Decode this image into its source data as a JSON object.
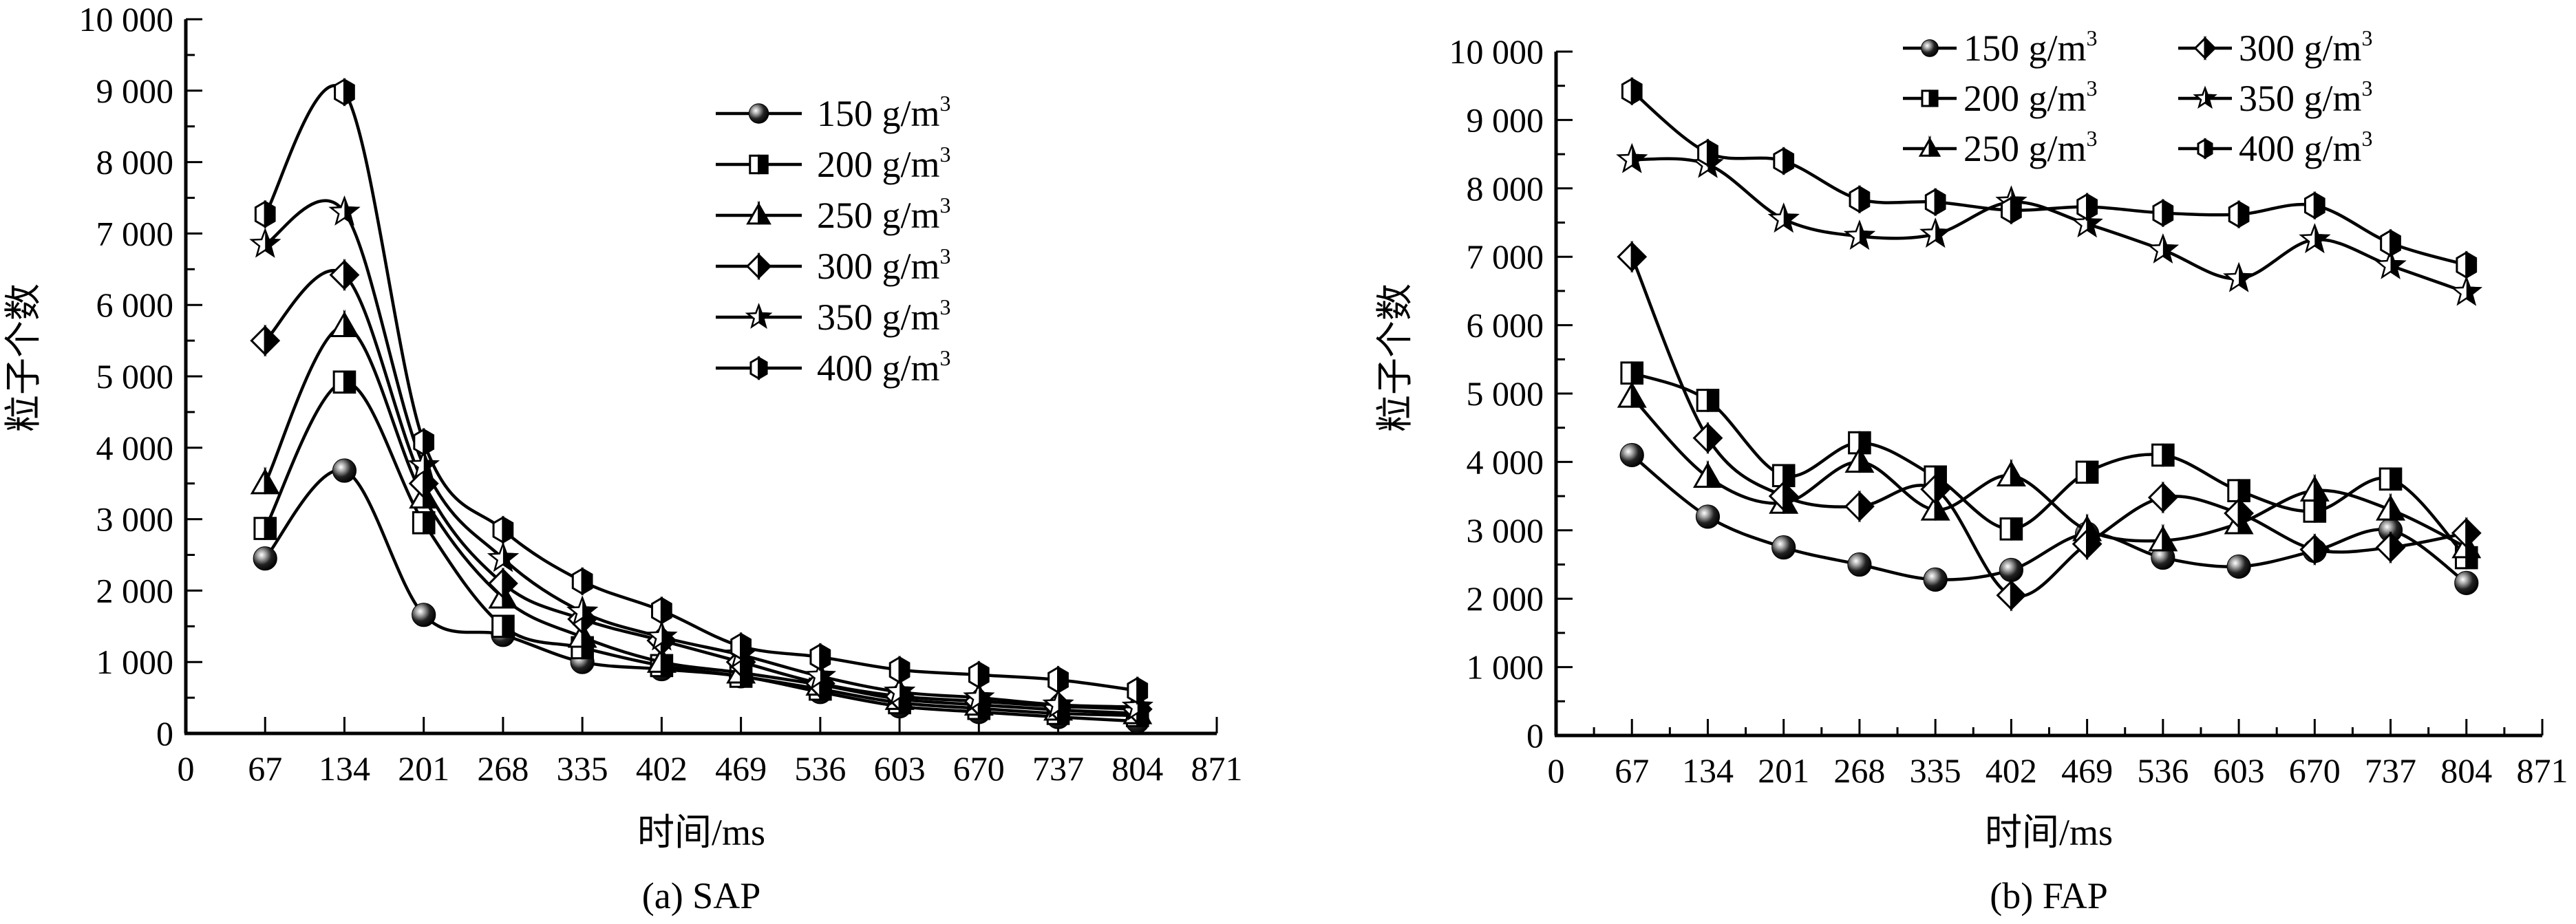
{
  "chart_data": [
    {
      "type": "line",
      "title": "(a) SAP",
      "xlabel": "时间/ms",
      "ylabel": "粒子个数",
      "xlim": [
        0,
        871
      ],
      "ylim": [
        0,
        10000
      ],
      "x_ticks": [
        "0",
        "67",
        "134",
        "201",
        "268",
        "335",
        "402",
        "469",
        "536",
        "603",
        "670",
        "737",
        "804",
        "871"
      ],
      "y_ticks": [
        "0",
        "1 000",
        "2 000",
        "3 000",
        "4 000",
        "5 000",
        "6 000",
        "7 000",
        "8 000",
        "9 000",
        "10 000"
      ],
      "grid": false,
      "legend_position": "top-right",
      "x": [
        67,
        134,
        201,
        268,
        335,
        402,
        469,
        536,
        603,
        670,
        737,
        804
      ],
      "series": [
        {
          "name": "150 g/m³",
          "label": "150 g/m",
          "sup": "3",
          "marker": "circle",
          "values": [
            2450,
            3680,
            1660,
            1380,
            1000,
            900,
            800,
            580,
            380,
            300,
            230,
            170
          ]
        },
        {
          "name": "200 g/m³",
          "label": "200 g/m",
          "sup": "3",
          "marker": "square",
          "values": [
            2870,
            4920,
            2950,
            1500,
            1200,
            950,
            800,
            620,
            430,
            350,
            280,
            250
          ]
        },
        {
          "name": "250 g/m³",
          "label": "250 g/m",
          "sup": "3",
          "marker": "triangle",
          "values": [
            3500,
            5700,
            3300,
            1900,
            1350,
            1000,
            850,
            680,
            480,
            400,
            330,
            280
          ]
        },
        {
          "name": "300 g/m³",
          "label": "300 g/m",
          "sup": "3",
          "marker": "diamond",
          "values": [
            5500,
            6420,
            3500,
            2100,
            1600,
            1300,
            1000,
            700,
            520,
            450,
            380,
            340
          ]
        },
        {
          "name": "350 g/m³",
          "label": "350 g/m",
          "sup": "3",
          "marker": "star",
          "values": [
            6850,
            7300,
            3750,
            2450,
            1700,
            1350,
            1100,
            800,
            580,
            500,
            400,
            370
          ]
        },
        {
          "name": "400 g/m³",
          "label": "400 g/m",
          "sup": "3",
          "marker": "hexagon",
          "values": [
            7270,
            8980,
            4080,
            2850,
            2130,
            1720,
            1220,
            1070,
            890,
            820,
            750,
            600
          ]
        }
      ]
    },
    {
      "type": "line",
      "title": "(b) FAP",
      "xlabel": "时间/ms",
      "ylabel": "粒子个数",
      "xlim": [
        0,
        871
      ],
      "ylim": [
        0,
        10000
      ],
      "x_ticks": [
        "0",
        "67",
        "134",
        "201",
        "268",
        "335",
        "402",
        "469",
        "536",
        "603",
        "670",
        "737",
        "804",
        "871"
      ],
      "y_ticks": [
        "0",
        "1 000",
        "2 000",
        "3 000",
        "4 000",
        "5 000",
        "6 000",
        "7 000",
        "8 000",
        "9 000",
        "10 000"
      ],
      "grid": false,
      "legend_position": "top-right",
      "x": [
        67,
        134,
        201,
        268,
        335,
        402,
        469,
        536,
        603,
        670,
        737,
        804
      ],
      "series": [
        {
          "name": "150 g/m³",
          "label": "150 g/m",
          "sup": "3",
          "marker": "circle",
          "values": [
            4100,
            3200,
            2750,
            2500,
            2280,
            2420,
            2950,
            2600,
            2470,
            2700,
            3000,
            2230
          ]
        },
        {
          "name": "200 g/m³",
          "label": "200 g/m",
          "sup": "3",
          "marker": "square",
          "values": [
            5300,
            4900,
            3800,
            4280,
            3780,
            3020,
            3850,
            4100,
            3580,
            3280,
            3750,
            2600
          ]
        },
        {
          "name": "250 g/m³",
          "label": "250 g/m",
          "sup": "3",
          "marker": "triangle",
          "values": [
            4950,
            3780,
            3400,
            4000,
            3300,
            3800,
            3000,
            2850,
            3100,
            3580,
            3300,
            2750
          ]
        },
        {
          "name": "300 g/m³",
          "label": "300 g/m",
          "sup": "3",
          "marker": "diamond",
          "values": [
            7000,
            4350,
            3500,
            3350,
            3600,
            2050,
            2800,
            3480,
            3250,
            2720,
            2750,
            2960
          ]
        },
        {
          "name": "350 g/m³",
          "label": "350 g/m",
          "sup": "3",
          "marker": "star",
          "values": [
            8420,
            8350,
            7550,
            7300,
            7330,
            7800,
            7480,
            7100,
            6680,
            7250,
            6870,
            6480
          ]
        },
        {
          "name": "400 g/m³",
          "label": "400 g/m",
          "sup": "3",
          "marker": "hexagon",
          "values": [
            9420,
            8520,
            8400,
            7840,
            7800,
            7680,
            7730,
            7640,
            7620,
            7750,
            7200,
            6880
          ]
        }
      ]
    }
  ],
  "colors": {
    "line": "#000000",
    "marker_fill_light": "#ffffff",
    "marker_fill_dark": "#000000",
    "ball_highlight": "#bbbbbb"
  }
}
